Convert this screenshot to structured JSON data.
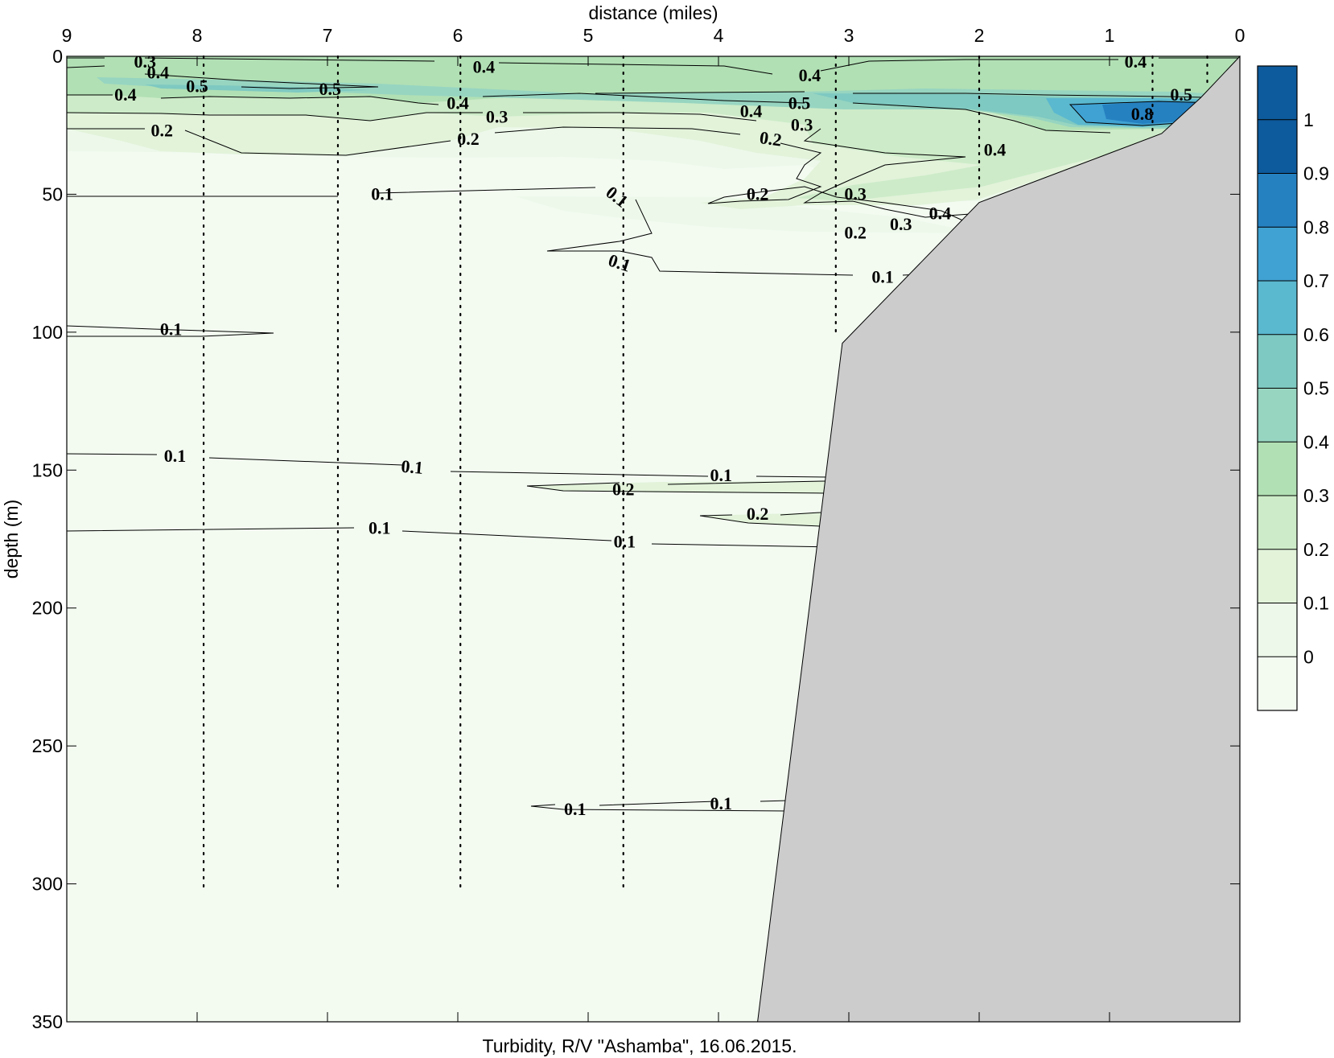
{
  "chart_data": {
    "type": "contour",
    "title": "",
    "caption": "Turbidity, R/V \"Ashamba\", 16.06.2015.",
    "xlabel": "distance (miles)",
    "ylabel": "depth (m)",
    "xlim": [
      9,
      0
    ],
    "ylim": [
      350,
      0
    ],
    "x_ticks": [
      "9",
      "8",
      "7",
      "6",
      "5",
      "4",
      "3",
      "2",
      "1",
      "0"
    ],
    "y_ticks": [
      "0",
      "50",
      "100",
      "150",
      "200",
      "250",
      "300",
      "350"
    ],
    "colorbar": {
      "levels": [
        0,
        0.1,
        0.2,
        0.3,
        0.4,
        0.5,
        0.6,
        0.7,
        0.8,
        0.9,
        1.0
      ],
      "tick_labels": [
        "0",
        "0.1",
        "0.2",
        "0.3",
        "0.4",
        "0.5",
        "0.6",
        "0.7",
        "0.8",
        "0.9",
        "1"
      ],
      "colors": [
        "#f3fbf1",
        "#edf8ea",
        "#e2f3da",
        "#cdebc8",
        "#b1e0b4",
        "#97d5c1",
        "#7ec9c1",
        "#5ab8cf",
        "#3fa2d3",
        "#2681c1",
        "#0d5a9c"
      ]
    },
    "stations_x_miles": [
      7.95,
      6.92,
      5.98,
      4.73,
      3.1,
      2.0,
      0.67,
      0.25
    ],
    "station_max_depth_m": [
      302,
      303,
      303,
      301,
      101,
      52,
      28,
      10
    ],
    "bottom_profile": {
      "color": "#cccccc",
      "x_miles": [
        0,
        0.3,
        0.6,
        2.0,
        3.05,
        3.7
      ],
      "depth_m": [
        0,
        15,
        28,
        53,
        104,
        350
      ]
    },
    "contour_labels": [
      {
        "text": "0.3",
        "x": 8.4,
        "depth": 2,
        "angle": 0
      },
      {
        "text": "0.4",
        "x": 8.3,
        "depth": 6,
        "angle": 0
      },
      {
        "text": "0.5",
        "x": 8.0,
        "depth": 11,
        "angle": 0
      },
      {
        "text": "0.4",
        "x": 8.55,
        "depth": 14,
        "angle": 0
      },
      {
        "text": "0.5",
        "x": 6.98,
        "depth": 12,
        "angle": 0
      },
      {
        "text": "0.4",
        "x": 5.8,
        "depth": 4,
        "angle": 0
      },
      {
        "text": "0.4",
        "x": 6.0,
        "depth": 17,
        "angle": 0
      },
      {
        "text": "0.3",
        "x": 5.7,
        "depth": 22,
        "angle": 0
      },
      {
        "text": "0.2",
        "x": 8.27,
        "depth": 27,
        "angle": 0
      },
      {
        "text": "0.2",
        "x": 5.92,
        "depth": 30,
        "angle": 0
      },
      {
        "text": "0.4",
        "x": 3.3,
        "depth": 7,
        "angle": 0
      },
      {
        "text": "0.5",
        "x": 3.38,
        "depth": 17,
        "angle": 0
      },
      {
        "text": "0.4",
        "x": 3.75,
        "depth": 20,
        "angle": 0
      },
      {
        "text": "0.3",
        "x": 3.36,
        "depth": 25,
        "angle": 0
      },
      {
        "text": "0.2",
        "x": 3.6,
        "depth": 30,
        "angle": 8
      },
      {
        "text": "0.4",
        "x": 0.8,
        "depth": 2,
        "angle": 0
      },
      {
        "text": "0.5",
        "x": 0.45,
        "depth": 14,
        "angle": 0
      },
      {
        "text": "0.8",
        "x": 0.75,
        "depth": 21,
        "angle": 0
      },
      {
        "text": "0.4",
        "x": 1.88,
        "depth": 34,
        "angle": 0
      },
      {
        "text": "0.2",
        "x": 3.7,
        "depth": 50,
        "angle": 0
      },
      {
        "text": "0.3",
        "x": 2.95,
        "depth": 50,
        "angle": 0
      },
      {
        "text": "0.4",
        "x": 2.3,
        "depth": 57,
        "angle": 0
      },
      {
        "text": "0.3",
        "x": 2.6,
        "depth": 61,
        "angle": 0
      },
      {
        "text": "0.2",
        "x": 2.95,
        "depth": 64,
        "angle": 0
      },
      {
        "text": "0.1",
        "x": 6.58,
        "depth": 50,
        "angle": 0
      },
      {
        "text": "0.1",
        "x": 4.78,
        "depth": 51,
        "angle": 38
      },
      {
        "text": "0.1",
        "x": 4.76,
        "depth": 75,
        "angle": 18
      },
      {
        "text": "0.1",
        "x": 2.74,
        "depth": 80,
        "angle": 0
      },
      {
        "text": "0.1",
        "x": 8.2,
        "depth": 99,
        "angle": 0
      },
      {
        "text": "0.1",
        "x": 8.17,
        "depth": 145,
        "angle": 0
      },
      {
        "text": "0.1",
        "x": 6.35,
        "depth": 149,
        "angle": 5
      },
      {
        "text": "0.1",
        "x": 3.98,
        "depth": 152,
        "angle": 0
      },
      {
        "text": "0.2",
        "x": 4.73,
        "depth": 157,
        "angle": 0
      },
      {
        "text": "0.2",
        "x": 3.7,
        "depth": 166,
        "angle": 0
      },
      {
        "text": "0.1",
        "x": 6.6,
        "depth": 171,
        "angle": 0
      },
      {
        "text": "0.1",
        "x": 4.72,
        "depth": 176,
        "angle": 0
      },
      {
        "text": "0.1",
        "x": 5.1,
        "depth": 273,
        "angle": 0
      },
      {
        "text": "0.1",
        "x": 3.98,
        "depth": 271,
        "angle": 0
      }
    ]
  }
}
